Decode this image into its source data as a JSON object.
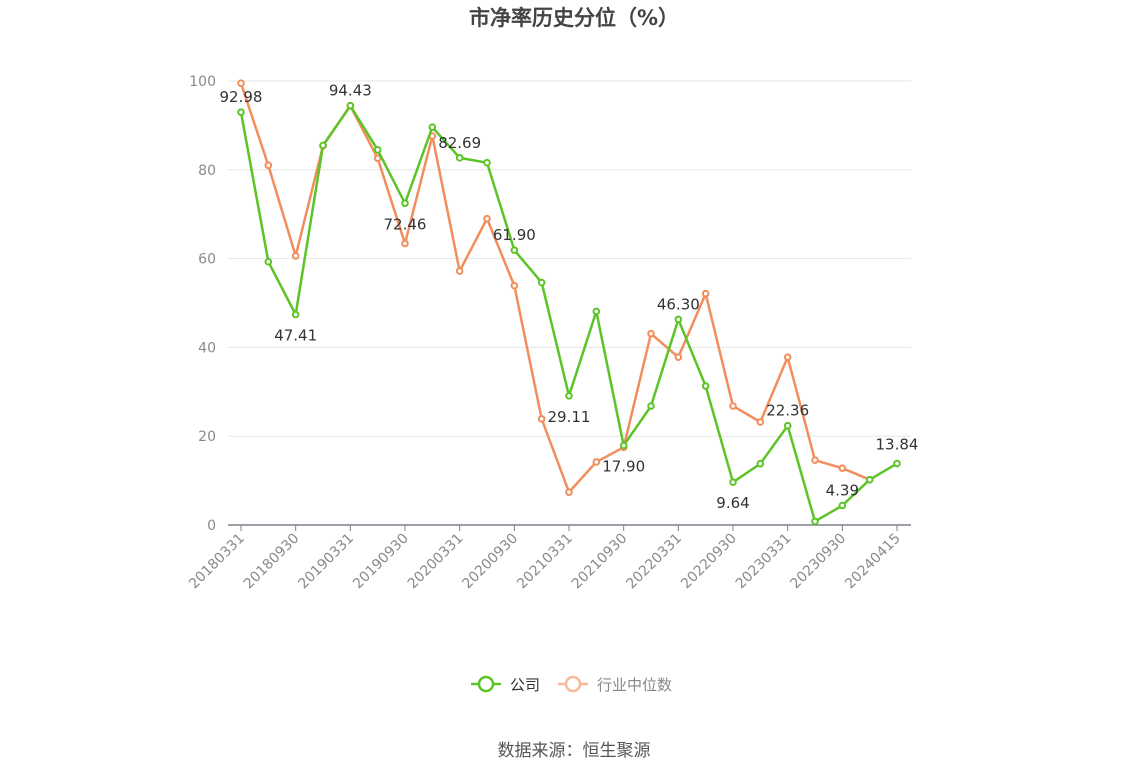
{
  "title": "市净率历史分位（%）",
  "source": "数据来源：恒生聚源",
  "colors": {
    "company": "#5cc427",
    "industry": "#f28e5c",
    "legend_industry": "#f7b89c",
    "grid": "#e6e6e6",
    "axis": "#7f7f8c"
  },
  "chart_data": {
    "type": "line",
    "ylim": [
      0,
      100
    ],
    "yticks": [
      "0",
      "20",
      "40",
      "60",
      "80",
      "100"
    ],
    "x": [
      "20180331",
      "20180630",
      "20180930",
      "20181231",
      "20190331",
      "20190630",
      "20190930",
      "20191231",
      "20200331",
      "20200630",
      "20200930",
      "20201231",
      "20210331",
      "20210630",
      "20210930",
      "20211231",
      "20220331",
      "20220630",
      "20220930",
      "20221231",
      "20230331",
      "20230630",
      "20230930",
      "20231231",
      "20240415"
    ],
    "xtick_labels": [
      "20180331",
      "20180930",
      "20190331",
      "20190930",
      "20200331",
      "20200930",
      "20210331",
      "20210930",
      "20220331",
      "20220930",
      "20230331",
      "20230930",
      "20240415"
    ],
    "legend_position": "bottom",
    "grid": true,
    "series": [
      {
        "name": "公司",
        "values": [
          92.98,
          59.3,
          47.41,
          85.5,
          94.43,
          84.5,
          72.46,
          89.6,
          82.69,
          81.6,
          61.9,
          54.6,
          29.11,
          48.1,
          17.9,
          26.8,
          46.3,
          31.3,
          9.64,
          13.8,
          22.36,
          0.8,
          4.39,
          10.2,
          13.84
        ]
      },
      {
        "name": "行业中位数",
        "values": [
          99.5,
          81.0,
          60.6,
          85.4,
          94.4,
          82.6,
          63.4,
          87.6,
          57.2,
          69.0,
          53.9,
          23.9,
          7.4,
          14.2,
          17.5,
          43.1,
          37.8,
          52.1,
          26.8,
          23.2,
          37.8,
          14.6,
          12.8,
          10.2,
          null
        ]
      }
    ],
    "data_labels": [
      {
        "index": 0,
        "text": "92.98"
      },
      {
        "index": 2,
        "text": "47.41"
      },
      {
        "index": 4,
        "text": "94.43"
      },
      {
        "index": 6,
        "text": "72.46"
      },
      {
        "index": 8,
        "text": "82.69"
      },
      {
        "index": 10,
        "text": "61.90"
      },
      {
        "index": 12,
        "text": "29.11"
      },
      {
        "index": 14,
        "text": "17.90"
      },
      {
        "index": 16,
        "text": "46.30"
      },
      {
        "index": 18,
        "text": "9.64"
      },
      {
        "index": 20,
        "text": "22.36"
      },
      {
        "index": 22,
        "text": "4.39"
      },
      {
        "index": 24,
        "text": "13.84"
      }
    ]
  }
}
